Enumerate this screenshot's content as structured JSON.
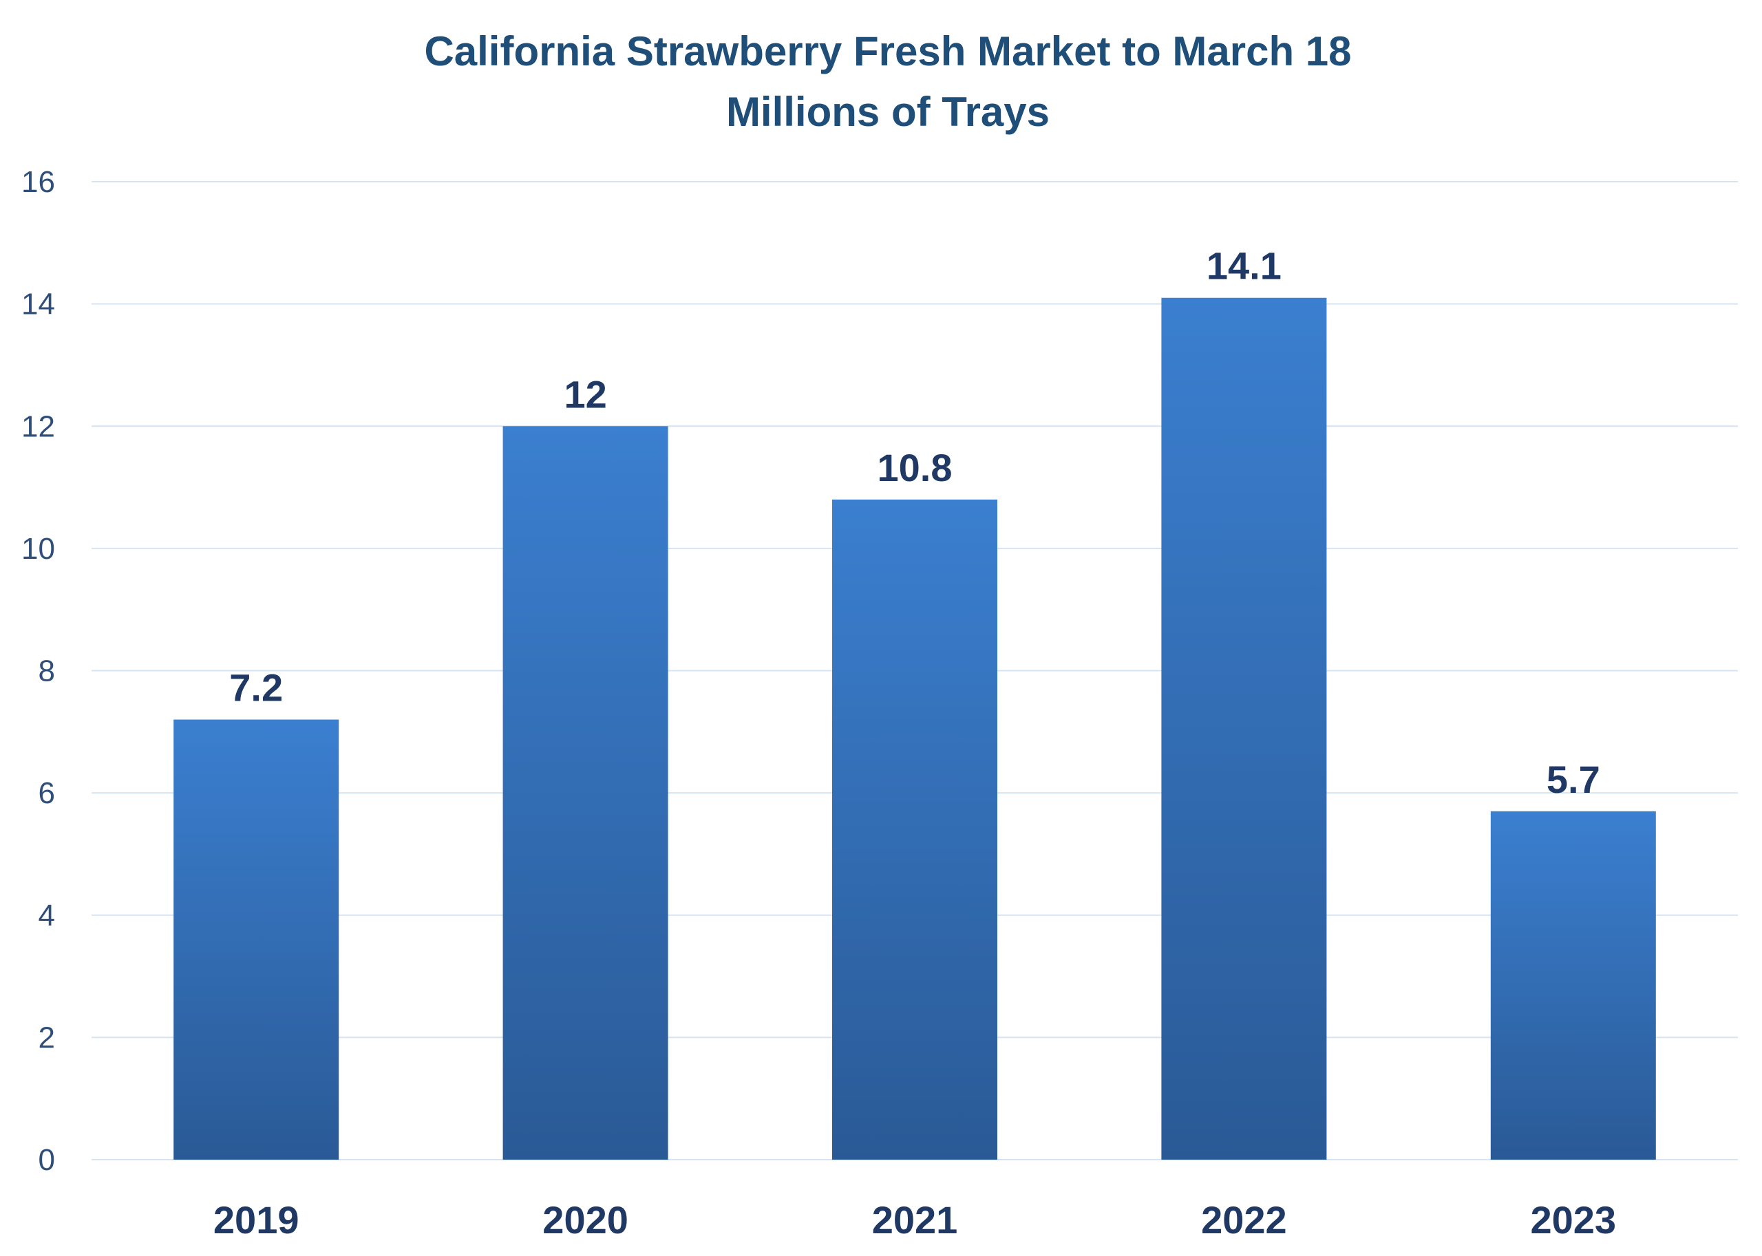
{
  "colors": {
    "title": "#1f4e79",
    "text": "#1f3864",
    "ytick": "#2f4f7a",
    "grid": "#d6e4f2",
    "bar_top": "#3b7fd0",
    "bar_bottom": "#2a5a96"
  },
  "chart_data": {
    "type": "bar",
    "title": "California Strawberry Fresh Market to March 18",
    "subtitle": "Millions of Trays",
    "categories": [
      "2019",
      "2020",
      "2021",
      "2022",
      "2023"
    ],
    "values": [
      7.2,
      12,
      10.8,
      14.1,
      5.7
    ],
    "data_labels": [
      "7.2",
      "12",
      "10.8",
      "14.1",
      "5.7"
    ],
    "yticks": [
      "0",
      "2",
      "4",
      "6",
      "8",
      "10",
      "12",
      "14",
      "16"
    ],
    "ylim": [
      0,
      16
    ],
    "ystep": 2,
    "grid": true,
    "legend": "none"
  }
}
